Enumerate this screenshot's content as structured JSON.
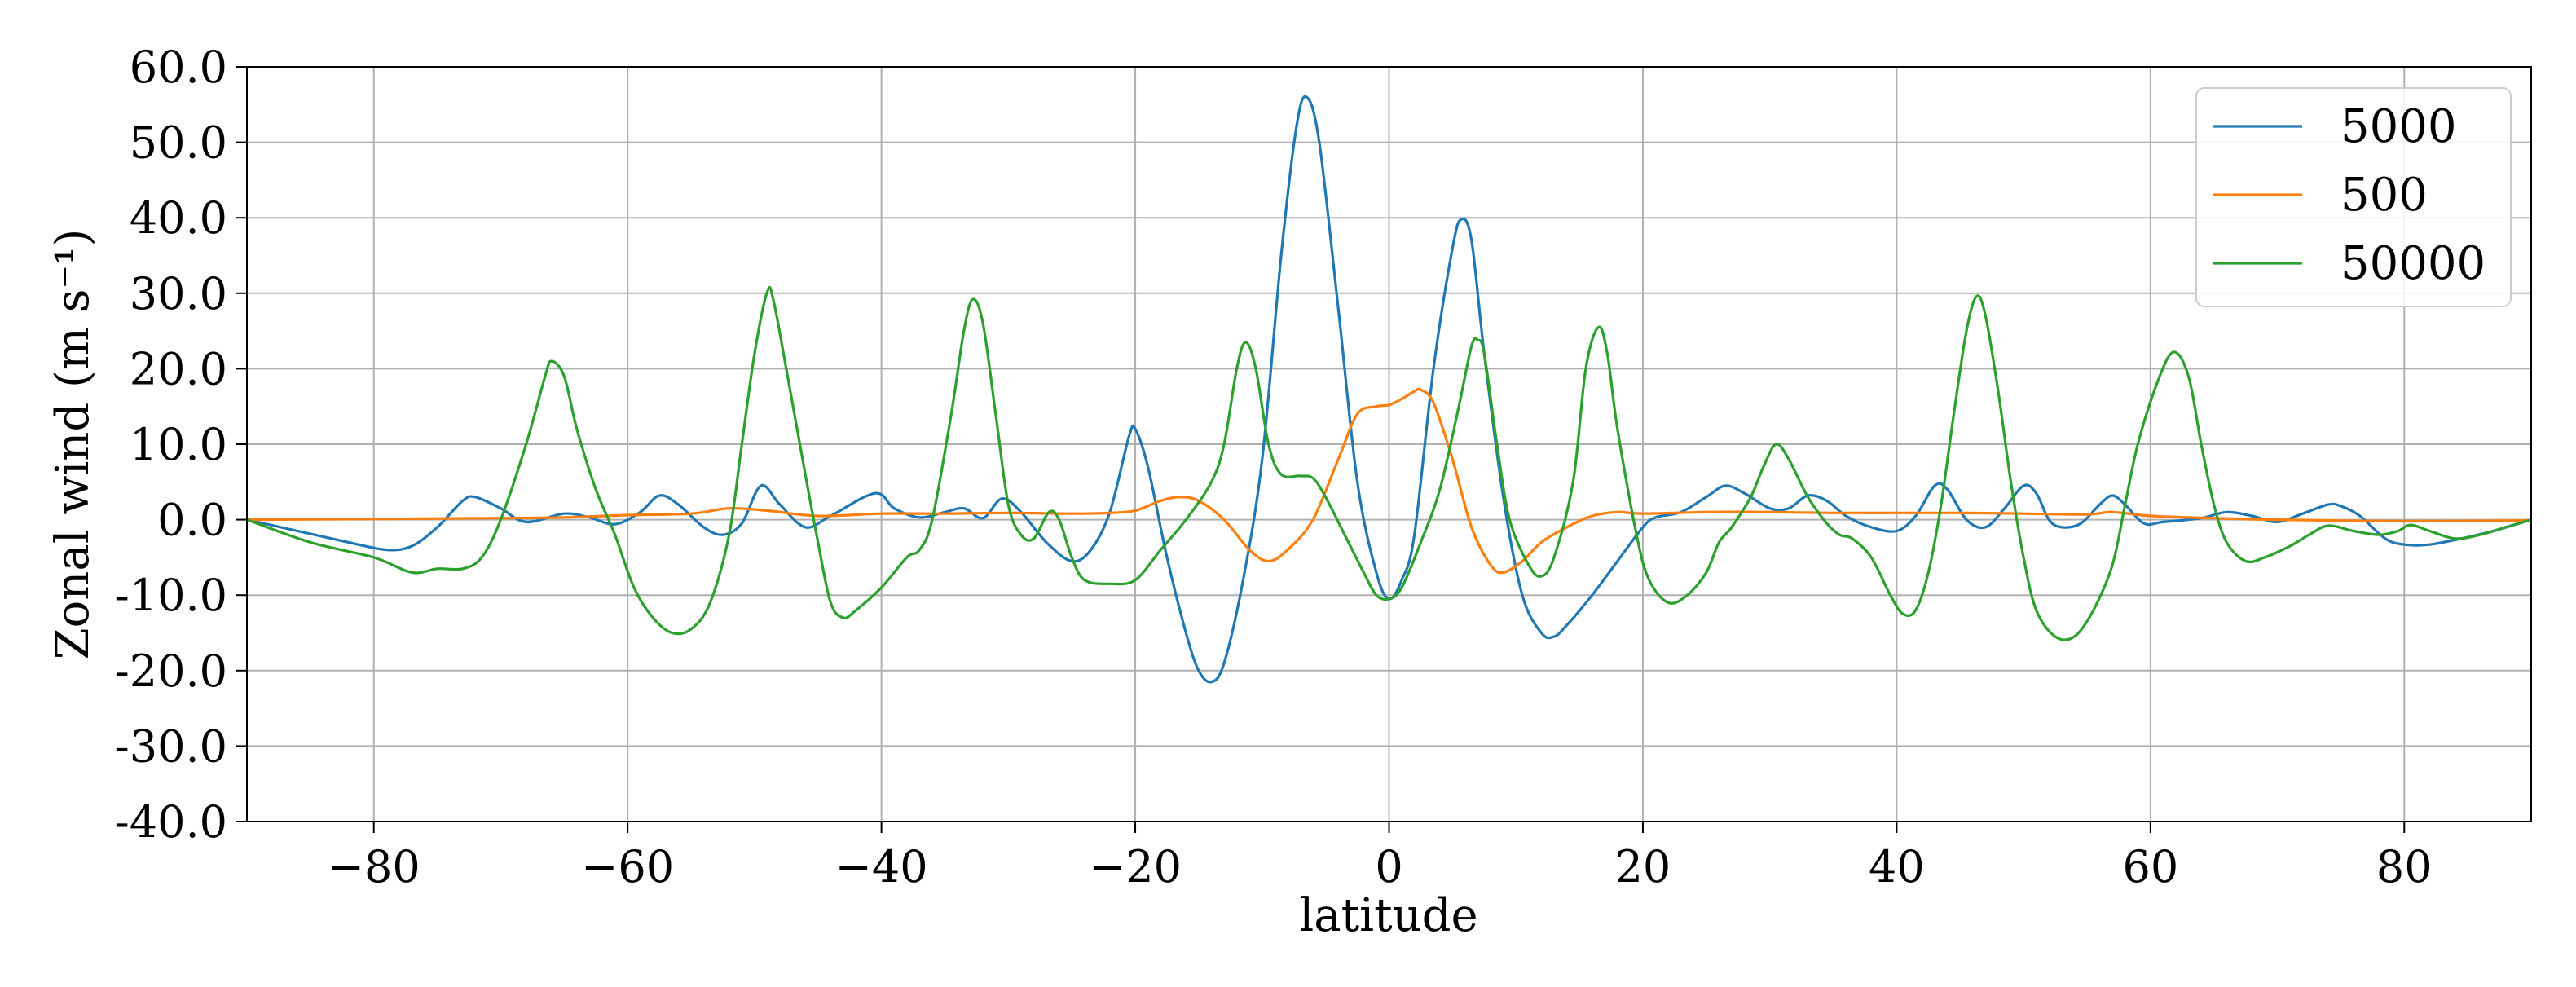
{
  "chart_data": {
    "type": "line",
    "xlabel": "latitude",
    "ylabel": "Zonal wind (m s⁻¹)",
    "xlim": [
      -90,
      90
    ],
    "ylim": [
      -40,
      60
    ],
    "xticks": [
      -80,
      -60,
      -40,
      -20,
      0,
      20,
      40,
      60,
      80
    ],
    "xtick_labels": [
      "−80",
      "−60",
      "−40",
      "−20",
      "0",
      "20",
      "40",
      "60",
      "80"
    ],
    "yticks": [
      -40,
      -30,
      -20,
      -10,
      0,
      10,
      20,
      30,
      40,
      50,
      60
    ],
    "ytick_labels": [
      "-40.0",
      "-30.0",
      "-20.0",
      "-10.0",
      "0.0",
      "10.0",
      "20.0",
      "30.0",
      "40.0",
      "50.0",
      "60.0"
    ],
    "grid": true,
    "legend_position": "top-right",
    "series": [
      {
        "name": "5000",
        "color": "#1f77b4",
        "points": [
          [
            -90,
            0
          ],
          [
            -86,
            -1.5
          ],
          [
            -82,
            -3
          ],
          [
            -79,
            -4
          ],
          [
            -77,
            -3.5
          ],
          [
            -75,
            -1
          ],
          [
            -73,
            2.5
          ],
          [
            -72,
            3
          ],
          [
            -70,
            1.5
          ],
          [
            -68,
            -0.3
          ],
          [
            -65,
            0.8
          ],
          [
            -63,
            0.3
          ],
          [
            -61,
            -0.6
          ],
          [
            -59,
            1
          ],
          [
            -57.5,
            3.2
          ],
          [
            -56,
            2
          ],
          [
            -54,
            -1
          ],
          [
            -52.5,
            -2
          ],
          [
            -51,
            -0.5
          ],
          [
            -49.5,
            4.5
          ],
          [
            -48,
            2
          ],
          [
            -46,
            -1
          ],
          [
            -44,
            0.5
          ],
          [
            -40.5,
            3.5
          ],
          [
            -39,
            1.5
          ],
          [
            -37,
            0.3
          ],
          [
            -35,
            1
          ],
          [
            -33.5,
            1.5
          ],
          [
            -32,
            0.2
          ],
          [
            -30.5,
            2.8
          ],
          [
            -29,
            1
          ],
          [
            -27,
            -3
          ],
          [
            -25,
            -5.5
          ],
          [
            -23.5,
            -4
          ],
          [
            -22,
            1
          ],
          [
            -20.5,
            11
          ],
          [
            -20,
            12
          ],
          [
            -19,
            7
          ],
          [
            -17.5,
            -5
          ],
          [
            -16,
            -15
          ],
          [
            -15,
            -20
          ],
          [
            -14,
            -21.5
          ],
          [
            -13,
            -19
          ],
          [
            -11.5,
            -8
          ],
          [
            -10,
            8
          ],
          [
            -8.5,
            35
          ],
          [
            -7.3,
            52
          ],
          [
            -6.5,
            56
          ],
          [
            -5.5,
            50
          ],
          [
            -4,
            28
          ],
          [
            -2.5,
            5
          ],
          [
            -1,
            -7
          ],
          [
            0,
            -10.5
          ],
          [
            1,
            -8
          ],
          [
            2,
            -2
          ],
          [
            3.5,
            20
          ],
          [
            5,
            36
          ],
          [
            5.7,
            39.8
          ],
          [
            6.5,
            37
          ],
          [
            7.5,
            22
          ],
          [
            9,
            3
          ],
          [
            10.5,
            -10
          ],
          [
            12,
            -15
          ],
          [
            13,
            -15.5
          ],
          [
            14,
            -14
          ],
          [
            16,
            -10
          ],
          [
            18,
            -5.5
          ],
          [
            20,
            -1
          ],
          [
            21,
            0.3
          ],
          [
            23,
            1
          ],
          [
            25,
            3
          ],
          [
            26.5,
            4.5
          ],
          [
            28,
            3.5
          ],
          [
            30,
            1.5
          ],
          [
            31.5,
            1.5
          ],
          [
            33,
            3.2
          ],
          [
            34.5,
            2.5
          ],
          [
            36,
            0.5
          ],
          [
            38,
            -1
          ],
          [
            40,
            -1.5
          ],
          [
            41.5,
            0.5
          ],
          [
            43,
            4.5
          ],
          [
            44,
            4
          ],
          [
            45.5,
            0
          ],
          [
            47,
            -1
          ],
          [
            48.5,
            1.5
          ],
          [
            50,
            4.5
          ],
          [
            51,
            3.5
          ],
          [
            52,
            0
          ],
          [
            53,
            -1
          ],
          [
            54.5,
            -0.5
          ],
          [
            56,
            2
          ],
          [
            57,
            3.2
          ],
          [
            58,
            2
          ],
          [
            59.5,
            -0.5
          ],
          [
            61,
            -0.3
          ],
          [
            64,
            0.2
          ],
          [
            66,
            1
          ],
          [
            68,
            0.5
          ],
          [
            70,
            -0.3
          ],
          [
            72,
            0.8
          ],
          [
            74,
            2
          ],
          [
            75,
            1.8
          ],
          [
            76.5,
            0.5
          ],
          [
            78.5,
            -2.5
          ],
          [
            80,
            -3.3
          ],
          [
            82,
            -3.3
          ],
          [
            84.5,
            -2.5
          ],
          [
            87,
            -1.5
          ],
          [
            90,
            0
          ]
        ]
      },
      {
        "name": "500",
        "color": "#ff7f0e",
        "points": [
          [
            -90,
            0
          ],
          [
            -80,
            0.1
          ],
          [
            -70,
            0.2
          ],
          [
            -65,
            0.3
          ],
          [
            -60,
            0.6
          ],
          [
            -55,
            0.8
          ],
          [
            -52,
            1.5
          ],
          [
            -49,
            1.2
          ],
          [
            -45,
            0.5
          ],
          [
            -40,
            0.8
          ],
          [
            -35,
            0.8
          ],
          [
            -30,
            0.9
          ],
          [
            -25,
            0.8
          ],
          [
            -22,
            0.9
          ],
          [
            -20,
            1.2
          ],
          [
            -18,
            2.5
          ],
          [
            -16.5,
            3
          ],
          [
            -15,
            2.5
          ],
          [
            -13,
            0
          ],
          [
            -11,
            -4
          ],
          [
            -9.5,
            -5.5
          ],
          [
            -8,
            -4
          ],
          [
            -6,
            0
          ],
          [
            -4,
            8
          ],
          [
            -2.5,
            14
          ],
          [
            -1,
            15
          ],
          [
            0,
            15.2
          ],
          [
            1,
            16
          ],
          [
            2,
            17
          ],
          [
            2.5,
            17.2
          ],
          [
            3.5,
            15.5
          ],
          [
            5,
            8
          ],
          [
            6.5,
            -1
          ],
          [
            8,
            -6
          ],
          [
            9,
            -7
          ],
          [
            10.5,
            -5.5
          ],
          [
            12,
            -3
          ],
          [
            14,
            -1
          ],
          [
            16,
            0.5
          ],
          [
            18,
            1
          ],
          [
            20,
            0.8
          ],
          [
            25,
            1
          ],
          [
            30,
            1
          ],
          [
            35,
            0.9
          ],
          [
            40,
            0.9
          ],
          [
            45,
            0.9
          ],
          [
            50,
            0.8
          ],
          [
            55,
            0.7
          ],
          [
            57,
            1
          ],
          [
            60,
            0.5
          ],
          [
            65,
            0.2
          ],
          [
            70,
            0
          ],
          [
            80,
            -0.2
          ],
          [
            90,
            -0.1
          ]
        ]
      },
      {
        "name": "50000",
        "color": "#2ca02c",
        "points": [
          [
            -90,
            0
          ],
          [
            -85,
            -3
          ],
          [
            -80,
            -5
          ],
          [
            -77,
            -7
          ],
          [
            -75,
            -6.5
          ],
          [
            -73,
            -6.5
          ],
          [
            -71.5,
            -5
          ],
          [
            -70,
            0
          ],
          [
            -68,
            10
          ],
          [
            -66.5,
            19
          ],
          [
            -66,
            21
          ],
          [
            -65,
            19
          ],
          [
            -64,
            12
          ],
          [
            -62.5,
            4
          ],
          [
            -61,
            -2
          ],
          [
            -59.5,
            -9
          ],
          [
            -58,
            -13
          ],
          [
            -56.5,
            -15
          ],
          [
            -55,
            -14.5
          ],
          [
            -53.5,
            -11
          ],
          [
            -52,
            -2
          ],
          [
            -51,
            10
          ],
          [
            -50,
            22
          ],
          [
            -49,
            30.2
          ],
          [
            -48.5,
            29
          ],
          [
            -47.5,
            20
          ],
          [
            -46,
            6
          ],
          [
            -45,
            -3
          ],
          [
            -44,
            -11
          ],
          [
            -43,
            -13
          ],
          [
            -42,
            -12
          ],
          [
            -40,
            -9
          ],
          [
            -38,
            -5
          ],
          [
            -37,
            -4
          ],
          [
            -36,
            0
          ],
          [
            -34.5,
            14
          ],
          [
            -33.5,
            25
          ],
          [
            -32.8,
            29.2
          ],
          [
            -32,
            26
          ],
          [
            -31,
            14
          ],
          [
            -30,
            2
          ],
          [
            -29,
            -2
          ],
          [
            -28,
            -2.5
          ],
          [
            -26.8,
            1
          ],
          [
            -26,
            0
          ],
          [
            -25,
            -5
          ],
          [
            -24,
            -8
          ],
          [
            -22,
            -8.5
          ],
          [
            -20,
            -8
          ],
          [
            -18,
            -4
          ],
          [
            -16,
            0
          ],
          [
            -14,
            5
          ],
          [
            -13,
            10
          ],
          [
            -12,
            20
          ],
          [
            -11.3,
            23.5
          ],
          [
            -10.5,
            20
          ],
          [
            -9.5,
            10
          ],
          [
            -8.5,
            6
          ],
          [
            -7,
            5.8
          ],
          [
            -6,
            5.5
          ],
          [
            -5,
            3
          ],
          [
            -3.5,
            -2
          ],
          [
            -2,
            -7
          ],
          [
            -1,
            -10
          ],
          [
            0,
            -10.5
          ],
          [
            1,
            -9
          ],
          [
            2.5,
            -3
          ],
          [
            4,
            4
          ],
          [
            5.5,
            15
          ],
          [
            6.5,
            23
          ],
          [
            7,
            23.8
          ],
          [
            7.5,
            22
          ],
          [
            8.5,
            10
          ],
          [
            9.5,
            0
          ],
          [
            11,
            -6
          ],
          [
            12,
            -7.5
          ],
          [
            13,
            -5
          ],
          [
            14.5,
            5
          ],
          [
            15.5,
            20
          ],
          [
            16.5,
            25.5
          ],
          [
            17.2,
            22
          ],
          [
            18,
            12
          ],
          [
            19.5,
            -2
          ],
          [
            20.5,
            -8
          ],
          [
            22,
            -11
          ],
          [
            23.5,
            -10
          ],
          [
            25,
            -7
          ],
          [
            26,
            -3
          ],
          [
            27,
            -1
          ],
          [
            28.5,
            3
          ],
          [
            29.5,
            7
          ],
          [
            30.5,
            10
          ],
          [
            31.5,
            8
          ],
          [
            33,
            3
          ],
          [
            34.5,
            -0.5
          ],
          [
            35.5,
            -2
          ],
          [
            36.5,
            -2.5
          ],
          [
            38,
            -5
          ],
          [
            39.5,
            -10
          ],
          [
            40.5,
            -12.5
          ],
          [
            41.5,
            -12
          ],
          [
            42.5,
            -7
          ],
          [
            43.5,
            2
          ],
          [
            44.5,
            14
          ],
          [
            45.5,
            25
          ],
          [
            46.3,
            29.6
          ],
          [
            47,
            27
          ],
          [
            48,
            17
          ],
          [
            49,
            5
          ],
          [
            50,
            -5
          ],
          [
            51,
            -12
          ],
          [
            52.5,
            -15.5
          ],
          [
            54,
            -15.5
          ],
          [
            55.5,
            -12
          ],
          [
            57,
            -6
          ],
          [
            58,
            2
          ],
          [
            59,
            10
          ],
          [
            60.5,
            18
          ],
          [
            61.8,
            22.2
          ],
          [
            63,
            19
          ],
          [
            64,
            10
          ],
          [
            65,
            2
          ],
          [
            66,
            -3
          ],
          [
            67.5,
            -5.5
          ],
          [
            69,
            -5
          ],
          [
            71,
            -3.5
          ],
          [
            72.5,
            -2
          ],
          [
            74,
            -0.8
          ],
          [
            76,
            -1.5
          ],
          [
            78,
            -2
          ],
          [
            79.5,
            -1.5
          ],
          [
            80.5,
            -0.7
          ],
          [
            82,
            -1.5
          ],
          [
            84,
            -2.5
          ],
          [
            86,
            -2
          ],
          [
            88,
            -1
          ],
          [
            90,
            0
          ]
        ]
      }
    ]
  }
}
